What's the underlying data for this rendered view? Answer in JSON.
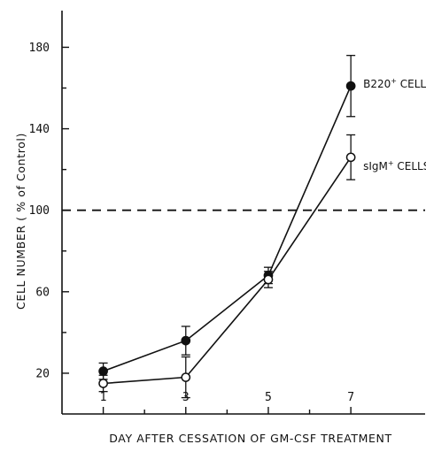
{
  "chart_data": {
    "type": "line",
    "title": "",
    "xlabel": "DAY AFTER CESSATION OF GM-CSF TREATMENT",
    "ylabel": "CELL NUMBER ( % of Control)",
    "x_ticks": [
      1,
      3,
      5,
      7
    ],
    "y_ticks": [
      20,
      60,
      100,
      140,
      180
    ],
    "xlim": [
      0,
      8.8
    ],
    "ylim": [
      0,
      198
    ],
    "reference_line": {
      "y": 100,
      "style": "dashed"
    },
    "legend": "none (series labelled at line ends)",
    "grid": false,
    "series": [
      {
        "name": "B220",
        "name_sup": "+",
        "name_suffix": "CELLS",
        "marker": "filled-circle",
        "color": "#111111",
        "x": [
          1,
          3,
          5,
          7
        ],
        "values": [
          21,
          36,
          68,
          161
        ],
        "error": [
          4,
          7,
          4,
          15
        ]
      },
      {
        "name": "sIgM",
        "name_sup": "+",
        "name_suffix": "CELLS",
        "marker": "open-circle",
        "color": "#111111",
        "x": [
          1,
          3,
          5,
          7
        ],
        "values": [
          15,
          18,
          66,
          126
        ],
        "error": [
          4,
          10,
          4,
          11
        ]
      }
    ]
  }
}
